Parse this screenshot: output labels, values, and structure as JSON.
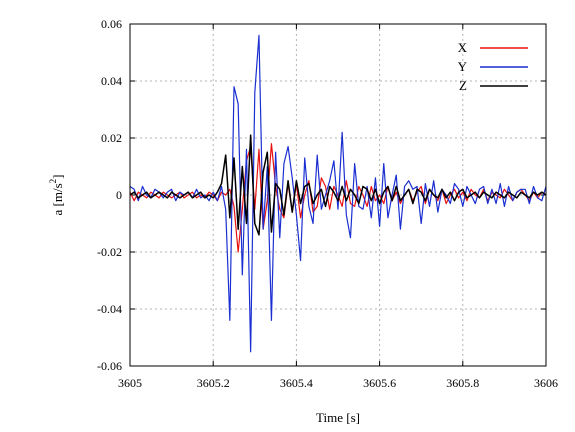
{
  "chart_data": {
    "type": "line",
    "xlabel": "Time [s]",
    "ylabel": "a [m/s",
    "ylabel_sup": "2",
    "ylabel_close": "]",
    "xlim": [
      3605,
      3606
    ],
    "ylim": [
      -0.06,
      0.06
    ],
    "x_ticks": [
      3605,
      3605.2,
      3605.4,
      3605.6,
      3605.8,
      3606
    ],
    "x_tick_labels": [
      "3605",
      "3605.2",
      "3605.4",
      "3605.6",
      "3605.8",
      "3606"
    ],
    "y_ticks": [
      -0.06,
      -0.04,
      -0.02,
      0,
      0.02,
      0.04,
      0.06
    ],
    "y_tick_labels": [
      "-0.06",
      "-0.04",
      "-0.02",
      "0",
      "0.02",
      "0.04",
      "0.06"
    ],
    "grid": true,
    "legend_position": "top-right",
    "series": [
      {
        "name": "X",
        "color": "#e8110f",
        "x": [
          3605.0,
          3605.01,
          3605.02,
          3605.03,
          3605.04,
          3605.05,
          3605.06,
          3605.07,
          3605.08,
          3605.09,
          3605.1,
          3605.11,
          3605.12,
          3605.13,
          3605.14,
          3605.15,
          3605.16,
          3605.17,
          3605.18,
          3605.19,
          3605.2,
          3605.21,
          3605.22,
          3605.23,
          3605.24,
          3605.25,
          3605.26,
          3605.27,
          3605.28,
          3605.29,
          3605.3,
          3605.31,
          3605.32,
          3605.33,
          3605.34,
          3605.35,
          3605.36,
          3605.37,
          3605.38,
          3605.39,
          3605.4,
          3605.41,
          3605.42,
          3605.43,
          3605.44,
          3605.45,
          3605.46,
          3605.47,
          3605.48,
          3605.49,
          3605.5,
          3605.51,
          3605.52,
          3605.53,
          3605.54,
          3605.55,
          3605.56,
          3605.57,
          3605.58,
          3605.59,
          3605.6,
          3605.61,
          3605.62,
          3605.63,
          3605.64,
          3605.65,
          3605.66,
          3605.67,
          3605.68,
          3605.69,
          3605.7,
          3605.71,
          3605.72,
          3605.73,
          3605.74,
          3605.75,
          3605.76,
          3605.77,
          3605.78,
          3605.79,
          3605.8,
          3605.81,
          3605.82,
          3605.83,
          3605.84,
          3605.85,
          3605.86,
          3605.87,
          3605.88,
          3605.89,
          3605.9,
          3605.91,
          3605.92,
          3605.93,
          3605.94,
          3605.95,
          3605.96,
          3605.97,
          3605.98,
          3605.99,
          3606.0
        ],
        "values": [
          0.001,
          -0.002,
          0.001,
          0.0,
          -0.001,
          0.001,
          0.0,
          -0.001,
          0.001,
          0.0,
          -0.001,
          0.0,
          0.001,
          -0.001,
          0.0,
          0.001,
          -0.001,
          0.0,
          -0.001,
          0.001,
          0.0,
          -0.002,
          0.001,
          0.0,
          0.002,
          -0.004,
          -0.02,
          -0.005,
          0.012,
          0.017,
          -0.005,
          0.016,
          -0.012,
          -0.002,
          0.018,
          0.003,
          -0.005,
          -0.008,
          0.004,
          -0.006,
          0.004,
          -0.008,
          0.0,
          0.005,
          -0.006,
          -0.004,
          0.006,
          0.003,
          -0.005,
          0.003,
          0.0,
          -0.004,
          0.005,
          -0.003,
          -0.004,
          0.003,
          0.0,
          -0.004,
          0.003,
          -0.002,
          0.0,
          -0.003,
          0.003,
          -0.002,
          0.001,
          -0.003,
          0.0,
          0.002,
          -0.002,
          0.001,
          0.003,
          -0.003,
          0.002,
          0.0,
          -0.002,
          0.002,
          -0.003,
          0.0,
          0.002,
          -0.001,
          0.001,
          -0.002,
          0.002,
          0.0,
          -0.001,
          0.002,
          -0.002,
          0.001,
          0.0,
          -0.001,
          0.002,
          0.0,
          -0.002,
          0.001,
          0.002,
          0.0,
          -0.002,
          0.001,
          -0.001,
          0.001,
          0.0
        ]
      },
      {
        "name": "Y",
        "color": "#1a2fd1",
        "x": [
          3605.0,
          3605.01,
          3605.02,
          3605.03,
          3605.04,
          3605.05,
          3605.06,
          3605.07,
          3605.08,
          3605.09,
          3605.1,
          3605.11,
          3605.12,
          3605.13,
          3605.14,
          3605.15,
          3605.16,
          3605.17,
          3605.18,
          3605.19,
          3605.2,
          3605.21,
          3605.22,
          3605.23,
          3605.24,
          3605.25,
          3605.26,
          3605.27,
          3605.28,
          3605.29,
          3605.3,
          3605.31,
          3605.32,
          3605.33,
          3605.34,
          3605.35,
          3605.36,
          3605.37,
          3605.38,
          3605.39,
          3605.4,
          3605.41,
          3605.42,
          3605.43,
          3605.44,
          3605.45,
          3605.46,
          3605.47,
          3605.48,
          3605.49,
          3605.5,
          3605.51,
          3605.52,
          3605.53,
          3605.54,
          3605.55,
          3605.56,
          3605.57,
          3605.58,
          3605.59,
          3605.6,
          3605.61,
          3605.62,
          3605.63,
          3605.64,
          3605.65,
          3605.66,
          3605.67,
          3605.68,
          3605.69,
          3605.7,
          3605.71,
          3605.72,
          3605.73,
          3605.74,
          3605.75,
          3605.76,
          3605.77,
          3605.78,
          3605.79,
          3605.8,
          3605.81,
          3605.82,
          3605.83,
          3605.84,
          3605.85,
          3605.86,
          3605.87,
          3605.88,
          3605.89,
          3605.9,
          3605.91,
          3605.92,
          3605.93,
          3605.94,
          3605.95,
          3605.96,
          3605.97,
          3605.98,
          3605.99,
          3606.0
        ],
        "values": [
          0.003,
          0.002,
          -0.002,
          0.003,
          0.0,
          -0.001,
          0.002,
          0.001,
          -0.001,
          0.001,
          0.002,
          -0.002,
          0.001,
          0.0,
          0.001,
          -0.001,
          0.002,
          -0.001,
          0.0,
          -0.002,
          0.001,
          -0.002,
          0.003,
          -0.005,
          -0.044,
          0.038,
          0.032,
          -0.028,
          0.016,
          -0.055,
          0.036,
          0.056,
          -0.012,
          0.01,
          -0.044,
          0.015,
          -0.015,
          0.011,
          0.017,
          0.006,
          -0.007,
          -0.023,
          0.013,
          -0.004,
          -0.01,
          0.014,
          -0.005,
          0.0,
          0.005,
          0.012,
          -0.005,
          0.022,
          -0.007,
          -0.015,
          0.011,
          -0.004,
          -0.005,
          0.003,
          -0.008,
          0.006,
          -0.011,
          0.011,
          -0.008,
          0.0,
          0.007,
          -0.012,
          0.003,
          0.005,
          0.002,
          0.003,
          -0.01,
          0.004,
          -0.004,
          0.005,
          -0.006,
          0.002,
          0.0,
          -0.003,
          0.004,
          0.002,
          -0.004,
          0.003,
          0.0,
          -0.003,
          0.002,
          0.003,
          -0.003,
          0.002,
          -0.003,
          0.004,
          -0.004,
          0.003,
          -0.002,
          0.001,
          0.002,
          0.002,
          -0.003,
          0.003,
          -0.001,
          -0.002,
          0.003
        ]
      },
      {
        "name": "Z",
        "color": "#000000",
        "x": [
          3605.0,
          3605.01,
          3605.02,
          3605.03,
          3605.04,
          3605.05,
          3605.06,
          3605.07,
          3605.08,
          3605.09,
          3605.1,
          3605.11,
          3605.12,
          3605.13,
          3605.14,
          3605.15,
          3605.16,
          3605.17,
          3605.18,
          3605.19,
          3605.2,
          3605.21,
          3605.22,
          3605.23,
          3605.24,
          3605.25,
          3605.26,
          3605.27,
          3605.28,
          3605.29,
          3605.3,
          3605.31,
          3605.32,
          3605.33,
          3605.34,
          3605.35,
          3605.36,
          3605.37,
          3605.38,
          3605.39,
          3605.4,
          3605.41,
          3605.42,
          3605.43,
          3605.44,
          3605.45,
          3605.46,
          3605.47,
          3605.48,
          3605.49,
          3605.5,
          3605.51,
          3605.52,
          3605.53,
          3605.54,
          3605.55,
          3605.56,
          3605.57,
          3605.58,
          3605.59,
          3605.6,
          3605.61,
          3605.62,
          3605.63,
          3605.64,
          3605.65,
          3605.66,
          3605.67,
          3605.68,
          3605.69,
          3605.7,
          3605.71,
          3605.72,
          3605.73,
          3605.74,
          3605.75,
          3605.76,
          3605.77,
          3605.78,
          3605.79,
          3605.8,
          3605.81,
          3605.82,
          3605.83,
          3605.84,
          3605.85,
          3605.86,
          3605.87,
          3605.88,
          3605.89,
          3605.9,
          3605.91,
          3605.92,
          3605.93,
          3605.94,
          3605.95,
          3605.96,
          3605.97,
          3605.98,
          3605.99,
          3606.0
        ],
        "values": [
          0.0,
          0.001,
          -0.001,
          0.0,
          0.001,
          -0.001,
          0.0,
          0.001,
          0.0,
          -0.001,
          0.001,
          0.0,
          -0.001,
          0.0,
          0.001,
          -0.001,
          0.0,
          0.001,
          -0.001,
          0.0,
          -0.001,
          0.001,
          0.004,
          0.014,
          -0.008,
          0.013,
          -0.012,
          0.01,
          -0.01,
          0.021,
          -0.01,
          -0.014,
          0.008,
          0.015,
          -0.013,
          0.004,
          0.002,
          -0.007,
          0.005,
          -0.006,
          0.005,
          -0.003,
          0.003,
          0.004,
          -0.003,
          0.0,
          0.002,
          -0.004,
          0.003,
          0.001,
          -0.002,
          0.003,
          -0.002,
          0.002,
          0.0,
          -0.003,
          0.003,
          0.002,
          -0.002,
          0.002,
          -0.003,
          0.001,
          0.003,
          -0.002,
          0.003,
          -0.002,
          0.0,
          0.002,
          -0.003,
          0.002,
          0.001,
          -0.002,
          0.002,
          0.0,
          -0.001,
          0.002,
          -0.001,
          0.001,
          -0.002,
          0.001,
          0.002,
          -0.001,
          0.0,
          0.001,
          -0.001,
          0.001,
          0.0,
          -0.001,
          0.001,
          0.0,
          -0.001,
          0.001,
          0.0,
          -0.001,
          0.001,
          0.0,
          -0.001,
          0.001,
          0.0,
          0.001,
          0.0
        ]
      }
    ]
  }
}
